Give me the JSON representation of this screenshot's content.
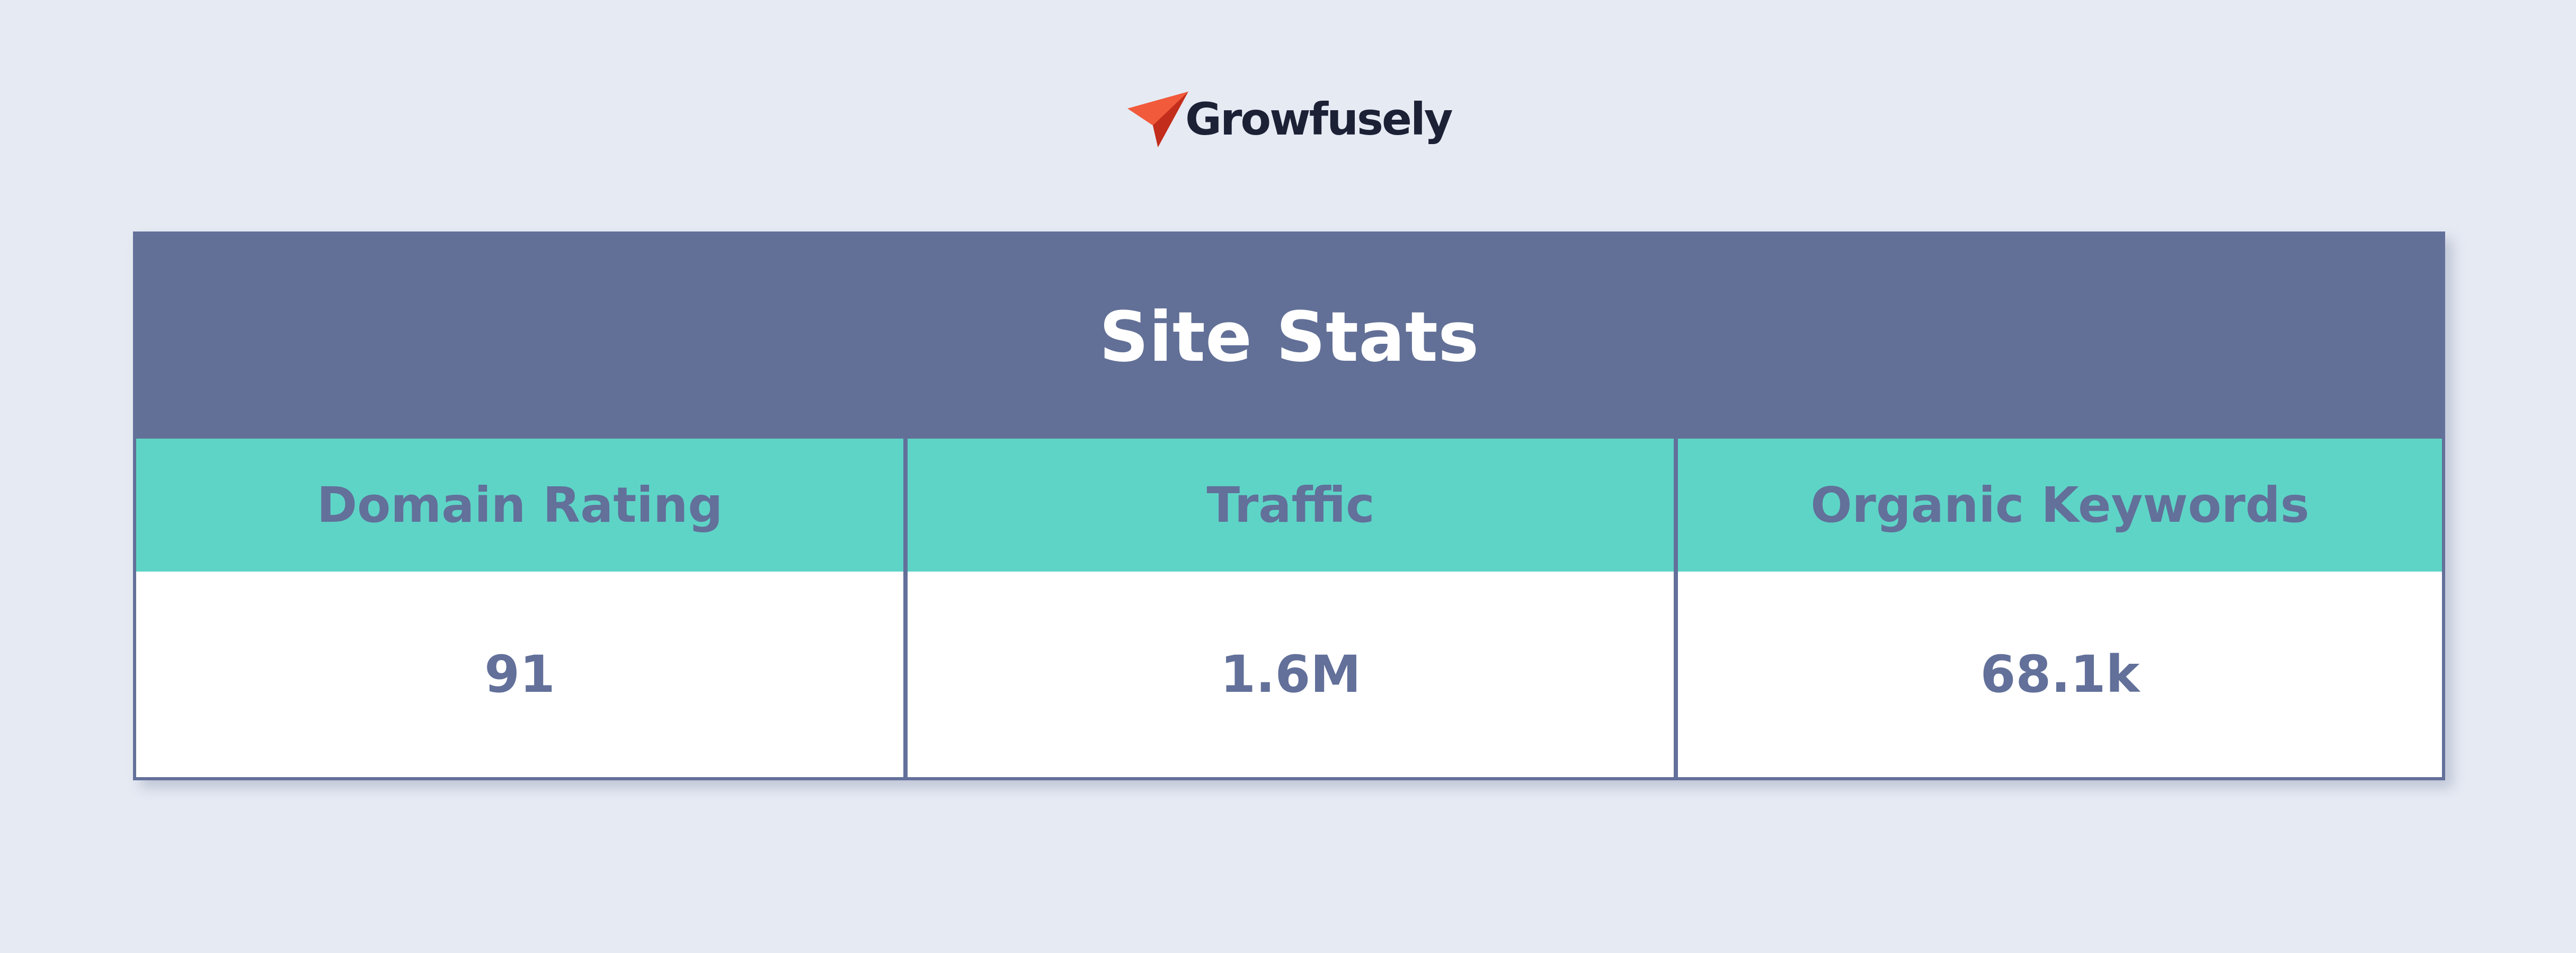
{
  "logo": {
    "text": "Growfusely"
  },
  "table": {
    "title": "Site Stats",
    "columns": [
      "Domain Rating",
      "Traffic",
      "Organic Keywords"
    ],
    "rows": [
      [
        "91",
        "1.6M",
        "68.1k"
      ]
    ]
  }
}
